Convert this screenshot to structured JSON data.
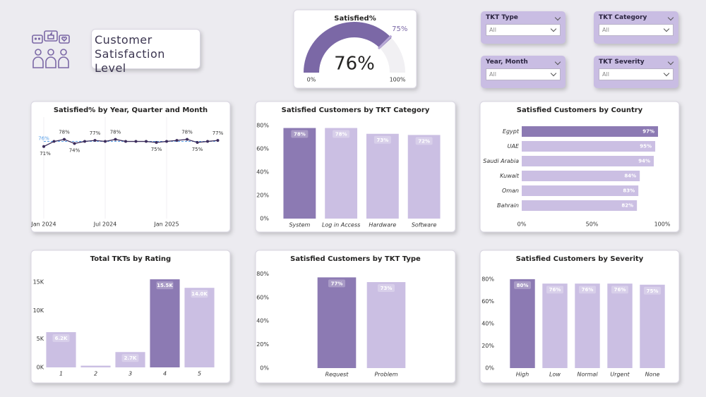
{
  "header": {
    "title": "Customer Satisfaction Level"
  },
  "slicers": [
    {
      "label": "TKT Type",
      "value": "All"
    },
    {
      "label": "TKT Category",
      "value": "All"
    },
    {
      "label": "Year, Month",
      "value": "All"
    },
    {
      "label": "TKT Severity",
      "value": "All"
    }
  ],
  "chart_data": [
    {
      "type": "gauge",
      "title": "Satisfied%",
      "value": 76,
      "value_label": "76%",
      "target": 75,
      "target_label": "75%",
      "ylim": [
        0,
        100
      ],
      "yticks": [
        {
          "value": 0,
          "label": "0%"
        },
        {
          "value": 100,
          "label": "100%"
        }
      ],
      "color": "#7b68a6",
      "target_color": "#b8a9d6"
    },
    {
      "type": "line",
      "title": "Satisfied% by Year, Quarter and Month",
      "categories": [
        "Jan 2024",
        null,
        null,
        null,
        null,
        null,
        "Jul 2024",
        null,
        null,
        null,
        null,
        null,
        "Jan 2025",
        null,
        null,
        null,
        null,
        null
      ],
      "values": [
        71,
        76,
        78,
        74,
        76,
        77,
        76,
        78,
        76,
        76,
        76,
        75,
        76,
        77,
        78,
        75,
        76,
        77
      ],
      "value_labels": [
        "71%",
        null,
        "78%",
        "74%",
        null,
        "77%",
        null,
        "78%",
        null,
        null,
        null,
        "75%",
        null,
        null,
        "78%",
        "75%",
        null,
        "77%"
      ],
      "ylim": [
        0,
        100
      ],
      "color": "#3c2d5c",
      "reference_line": {
        "value": 76,
        "label": "76%",
        "color": "#5aa0e8"
      }
    },
    {
      "type": "bar",
      "title": "Satisfied Customers by TKT Category",
      "categories": [
        "System",
        "Log in Access",
        "Hardware",
        "Software"
      ],
      "values": [
        78,
        78,
        73,
        72
      ],
      "value_labels": [
        "78%",
        "78%",
        "73%",
        "72%"
      ],
      "colors": [
        "#8c7ab3",
        "#cbbfe3",
        "#cbbfe3",
        "#cbbfe3"
      ],
      "ylim": [
        0,
        85
      ],
      "yticks": [
        {
          "value": 0,
          "label": "0%"
        },
        {
          "value": 20,
          "label": "20%"
        },
        {
          "value": 40,
          "label": "40%"
        },
        {
          "value": 60,
          "label": "60%"
        },
        {
          "value": 80,
          "label": "80%"
        }
      ]
    },
    {
      "type": "hbar",
      "title": "Satisfied Customers by Country",
      "categories": [
        "Egypt",
        "UAE",
        "Saudi Arabia",
        "Kuwait",
        "Oman",
        "Bahrain"
      ],
      "values": [
        97,
        95,
        94,
        84,
        83,
        82
      ],
      "value_labels": [
        "97%",
        "95%",
        "94%",
        "84%",
        "83%",
        "82%"
      ],
      "colors": [
        "#8c7ab3",
        "#cbbfe3",
        "#cbbfe3",
        "#cbbfe3",
        "#cbbfe3",
        "#cbbfe3"
      ],
      "xlim": [
        0,
        100
      ],
      "xticks": [
        {
          "value": 0,
          "label": "0%"
        },
        {
          "value": 50,
          "label": "50%"
        },
        {
          "value": 100,
          "label": "100%"
        }
      ]
    },
    {
      "type": "bar",
      "title": "Total TKTs by Rating",
      "categories": [
        "1",
        "2",
        "3",
        "4",
        "5"
      ],
      "values": [
        6200,
        300,
        2700,
        15500,
        14000
      ],
      "value_labels": [
        "6.2K",
        null,
        "2.7K",
        "15.5K",
        "14.0K"
      ],
      "colors": [
        "#cbbfe3",
        "#cbbfe3",
        "#cbbfe3",
        "#8c7ab3",
        "#cbbfe3"
      ],
      "ylim": [
        0,
        17000
      ],
      "yticks": [
        {
          "value": 0,
          "label": "0K"
        },
        {
          "value": 5000,
          "label": "5K"
        },
        {
          "value": 10000,
          "label": "10K"
        },
        {
          "value": 15000,
          "label": "15K"
        }
      ]
    },
    {
      "type": "bar",
      "title": "Satisfied Customers by TKT Type",
      "categories": [
        "Request",
        "Problem"
      ],
      "values": [
        77,
        73
      ],
      "value_labels": [
        "77%",
        "73%"
      ],
      "colors": [
        "#8c7ab3",
        "#cbbfe3"
      ],
      "ylim": [
        0,
        85
      ],
      "yticks": [
        {
          "value": 0,
          "label": "0%"
        },
        {
          "value": 20,
          "label": "20%"
        },
        {
          "value": 40,
          "label": "40%"
        },
        {
          "value": 60,
          "label": "60%"
        },
        {
          "value": 80,
          "label": "80%"
        }
      ]
    },
    {
      "type": "bar",
      "title": "Satisfied Customers by Severity",
      "categories": [
        "High",
        "Low",
        "Normal",
        "Urgent",
        "None"
      ],
      "values": [
        80,
        76,
        76,
        76,
        75
      ],
      "value_labels": [
        "80%",
        "76%",
        "76%",
        "76%",
        "75%"
      ],
      "colors": [
        "#8c7ab3",
        "#cbbfe3",
        "#cbbfe3",
        "#cbbfe3",
        "#cbbfe3"
      ],
      "ylim": [
        0,
        85
      ],
      "yticks": [
        {
          "value": 0,
          "label": "0%"
        },
        {
          "value": 20,
          "label": "20%"
        },
        {
          "value": 40,
          "label": "40%"
        },
        {
          "value": 60,
          "label": "60%"
        },
        {
          "value": 80,
          "label": "80%"
        }
      ]
    }
  ]
}
